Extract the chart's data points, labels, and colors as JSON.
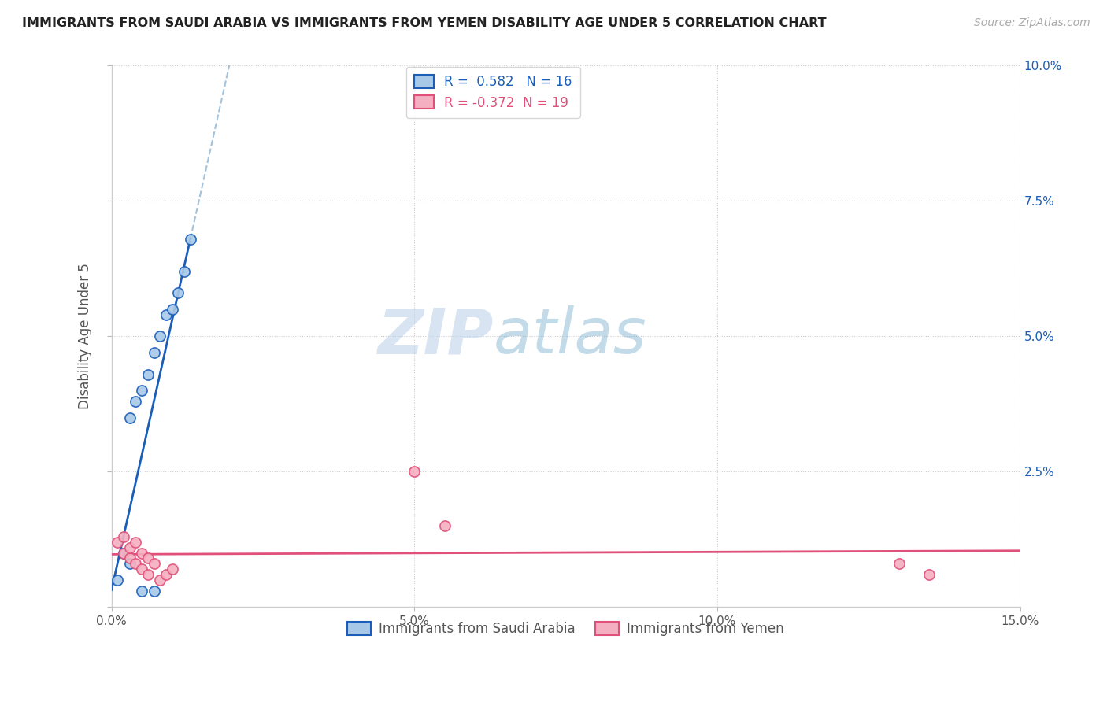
{
  "title": "IMMIGRANTS FROM SAUDI ARABIA VS IMMIGRANTS FROM YEMEN DISABILITY AGE UNDER 5 CORRELATION CHART",
  "source": "Source: ZipAtlas.com",
  "ylabel": "Disability Age Under 5",
  "xlim": [
    0.0,
    0.15
  ],
  "ylim": [
    0.0,
    0.1
  ],
  "xticks": [
    0.0,
    0.05,
    0.1,
    0.15
  ],
  "xtick_labels": [
    "0.0%",
    "5.0%",
    "10.0%",
    "15.0%"
  ],
  "yticks": [
    0.0,
    0.025,
    0.05,
    0.075,
    0.1
  ],
  "ytick_labels_right": [
    "",
    "2.5%",
    "5.0%",
    "7.5%",
    "10.0%"
  ],
  "saudi_R": 0.582,
  "saudi_N": 16,
  "yemen_R": -0.372,
  "yemen_N": 19,
  "saudi_color": "#a8c8e8",
  "saudi_line_color": "#1a5eb8",
  "saudi_line_dash_color": "#7aaad0",
  "yemen_color": "#f4b0c0",
  "yemen_line_color": "#e0507a",
  "watermark_zip": "ZIP",
  "watermark_atlas": "atlas",
  "saudi_x": [
    0.001,
    0.002,
    0.003,
    0.003,
    0.004,
    0.005,
    0.006,
    0.007,
    0.008,
    0.009,
    0.01,
    0.011,
    0.012,
    0.013,
    0.005,
    0.007
  ],
  "saudi_y": [
    0.005,
    0.01,
    0.008,
    0.035,
    0.038,
    0.04,
    0.043,
    0.047,
    0.05,
    0.054,
    0.055,
    0.058,
    0.062,
    0.068,
    0.003,
    0.003
  ],
  "yemen_x": [
    0.001,
    0.002,
    0.002,
    0.003,
    0.003,
    0.004,
    0.004,
    0.005,
    0.005,
    0.006,
    0.006,
    0.007,
    0.008,
    0.009,
    0.01,
    0.05,
    0.055,
    0.13,
    0.135
  ],
  "yemen_y": [
    0.012,
    0.01,
    0.013,
    0.009,
    0.011,
    0.008,
    0.012,
    0.01,
    0.007,
    0.009,
    0.006,
    0.008,
    0.005,
    0.006,
    0.007,
    0.025,
    0.015,
    0.008,
    0.006
  ]
}
